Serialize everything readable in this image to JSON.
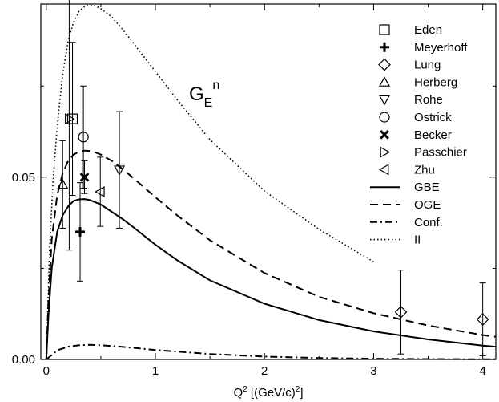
{
  "chart_data": {
    "type": "scatter",
    "title": "",
    "annotation": {
      "main": "G",
      "sub": "E",
      "sup": "n"
    },
    "xlabel": {
      "pre": "Q",
      "sup": "2",
      "mid": " [(GeV/c)",
      "sup2": "2",
      "post": "]"
    },
    "ylabel": "",
    "xlim": [
      -0.05,
      4.12
    ],
    "ylim": [
      0.0,
      0.0975
    ],
    "x_ticks": [
      {
        "value": 0,
        "label": "0"
      },
      {
        "value": 1,
        "label": "1"
      },
      {
        "value": 2,
        "label": "2"
      },
      {
        "value": 3,
        "label": "3"
      },
      {
        "value": 4,
        "label": "4"
      }
    ],
    "y_ticks": [
      {
        "value": 0.0,
        "label": "0.00"
      },
      {
        "value": 0.05,
        "label": "0.05"
      }
    ],
    "legend_position": "top-right",
    "points": [
      {
        "name": "Eden",
        "marker": "square",
        "x": 0.24,
        "y": 0.066,
        "err": 0.021
      },
      {
        "name": "Meyerhoff",
        "marker": "plus",
        "x": 0.31,
        "y": 0.035,
        "err": 0.0135
      },
      {
        "name": "Lung",
        "marker": "diamond",
        "x": 3.25,
        "y": 0.013,
        "err": 0.0115
      },
      {
        "name": "Lung",
        "marker": "diamond",
        "x": 4.0,
        "y": 0.011,
        "err": 0.01
      },
      {
        "name": "Herberg",
        "marker": "triangle-up",
        "x": 0.15,
        "y": 0.048,
        "err": 0.012
      },
      {
        "name": "Rohe",
        "marker": "triangle-down",
        "x": 0.67,
        "y": 0.052,
        "err": 0.016
      },
      {
        "name": "Ostrick",
        "marker": "circle",
        "x": 0.34,
        "y": 0.061,
        "err": 0.014
      },
      {
        "name": "Becker",
        "marker": "cross",
        "x": 0.35,
        "y": 0.05,
        "err": 0.0045
      },
      {
        "name": "Passchier",
        "marker": "triangle-right",
        "x": 0.21,
        "y": 0.066,
        "err": 0.036
      },
      {
        "name": "Zhu",
        "marker": "triangle-left",
        "x": 0.495,
        "y": 0.046,
        "err": 0.0095
      }
    ],
    "legend": [
      {
        "label": "Eden",
        "symbol": "square"
      },
      {
        "label": "Meyerhoff",
        "symbol": "plus"
      },
      {
        "label": "Lung",
        "symbol": "diamond"
      },
      {
        "label": "Herberg",
        "symbol": "triangle-up"
      },
      {
        "label": "Rohe",
        "symbol": "triangle-down"
      },
      {
        "label": "Ostrick",
        "symbol": "circle"
      },
      {
        "label": "Becker",
        "symbol": "cross"
      },
      {
        "label": "Passchier",
        "symbol": "triangle-right"
      },
      {
        "label": "Zhu",
        "symbol": "triangle-left"
      },
      {
        "label": "GBE",
        "symbol": "line-solid"
      },
      {
        "label": "OGE",
        "symbol": "line-dashed"
      },
      {
        "label": "Conf.",
        "symbol": "line-dashdot"
      },
      {
        "label": "II",
        "symbol": "line-dotted"
      }
    ],
    "curves": [
      {
        "name": "GBE",
        "style": "solid",
        "x": [
          0.0,
          0.02,
          0.05,
          0.1,
          0.15,
          0.2,
          0.25,
          0.3,
          0.35,
          0.4,
          0.5,
          0.6,
          0.7,
          0.8,
          1.0,
          1.2,
          1.5,
          2.0,
          2.5,
          3.0,
          3.5,
          4.0,
          4.12
        ],
        "y": [
          0.0,
          0.012,
          0.025,
          0.035,
          0.0395,
          0.042,
          0.0435,
          0.0439,
          0.044,
          0.0437,
          0.0425,
          0.0405,
          0.0385,
          0.0362,
          0.0315,
          0.0272,
          0.0217,
          0.0153,
          0.0108,
          0.0077,
          0.0055,
          0.0038,
          0.0035
        ]
      },
      {
        "name": "OGE",
        "style": "dashed",
        "x": [
          0.0,
          0.02,
          0.05,
          0.1,
          0.15,
          0.2,
          0.25,
          0.3,
          0.35,
          0.4,
          0.45,
          0.5,
          0.6,
          0.7,
          0.8,
          1.0,
          1.2,
          1.5,
          2.0,
          2.5,
          3.0,
          3.5,
          4.0,
          4.12
        ],
        "y": [
          0.0,
          0.016,
          0.033,
          0.045,
          0.051,
          0.0545,
          0.0562,
          0.057,
          0.0573,
          0.0572,
          0.0568,
          0.0562,
          0.0545,
          0.0522,
          0.0497,
          0.0445,
          0.0395,
          0.0327,
          0.0237,
          0.0172,
          0.0127,
          0.0093,
          0.0067,
          0.0062
        ]
      },
      {
        "name": "Conf.",
        "style": "dashdot",
        "x": [
          0.0,
          0.05,
          0.1,
          0.2,
          0.3,
          0.4,
          0.5,
          0.6,
          0.8,
          1.0,
          1.5,
          2.0,
          2.5,
          3.0,
          3.5,
          4.0,
          4.12
        ],
        "y": [
          0.0,
          0.0012,
          0.0025,
          0.0035,
          0.0039,
          0.004,
          0.0039,
          0.0037,
          0.0032,
          0.0026,
          0.0015,
          0.0008,
          0.0004,
          0.0002,
          0.0001,
          5e-05,
          4e-05
        ]
      },
      {
        "name": "II",
        "style": "dotted",
        "x": [
          0.0,
          0.03,
          0.06,
          0.1,
          0.15,
          0.2,
          0.25,
          0.3,
          0.35,
          0.4,
          0.45,
          0.5,
          0.6,
          0.7,
          0.8,
          1.0,
          1.2,
          1.5,
          2.0,
          2.5,
          3.0
        ],
        "y": [
          0.0,
          0.03,
          0.048,
          0.064,
          0.078,
          0.0875,
          0.0925,
          0.0955,
          0.0968,
          0.0972,
          0.097,
          0.0962,
          0.094,
          0.0905,
          0.0867,
          0.079,
          0.0712,
          0.0603,
          0.0462,
          0.0357,
          0.0268
        ]
      }
    ]
  }
}
